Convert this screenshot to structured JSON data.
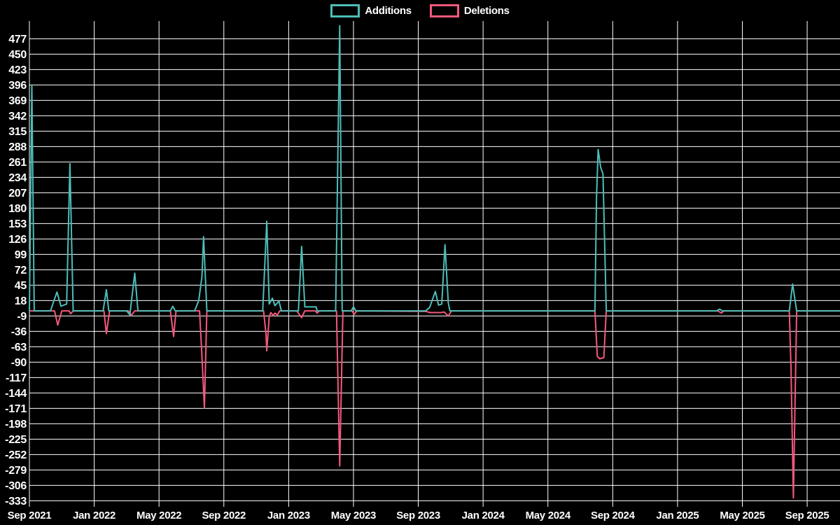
{
  "legend": {
    "items": [
      {
        "label": "Additions",
        "color": "#4dbdb7"
      },
      {
        "label": "Deletions",
        "color": "#f4597b"
      }
    ]
  },
  "chart_data": {
    "type": "line",
    "title": "",
    "background": "#000000",
    "grid": "on",
    "grid_color": "#ffffff",
    "text_color": "#ffffff",
    "legend_position": "top-center",
    "x_axis": {
      "unit": "months since Sep 2021",
      "labels": [
        "Sep 2021",
        "Jan 2022",
        "May 2022",
        "Sep 2022",
        "Jan 2023",
        "May 2023",
        "Sep 2023",
        "Jan 2024",
        "May 2024",
        "Sep 2024",
        "Jan 2025",
        "May 2025",
        "Sep 2025"
      ],
      "tick_positions_months": [
        0,
        4,
        8,
        12,
        16,
        20,
        24,
        28,
        32,
        36,
        40,
        44,
        48
      ],
      "range_months": [
        0,
        50
      ]
    },
    "y_axis": {
      "ticks": [
        477,
        450,
        423,
        396,
        369,
        342,
        315,
        288,
        261,
        234,
        207,
        180,
        153,
        126,
        99,
        72,
        45,
        18,
        -9,
        -36,
        -63,
        -90,
        -117,
        -144,
        -171,
        -198,
        -225,
        -252,
        -279,
        -306,
        -333
      ],
      "step": 27,
      "min": -333,
      "max": 477
    },
    "series": [
      {
        "name": "Additions",
        "color": "#4dbdb7",
        "points": [
          [
            0,
            0
          ],
          [
            0.15,
            396
          ],
          [
            0.3,
            0
          ],
          [
            1.3,
            0
          ],
          [
            1.7,
            33
          ],
          [
            1.95,
            8
          ],
          [
            2.3,
            12
          ],
          [
            2.5,
            258
          ],
          [
            2.7,
            0
          ],
          [
            4.55,
            0
          ],
          [
            4.75,
            37
          ],
          [
            4.9,
            0
          ],
          [
            6.0,
            0
          ],
          [
            6.2,
            -7
          ],
          [
            6.5,
            66
          ],
          [
            6.7,
            0
          ],
          [
            8.7,
            0
          ],
          [
            8.85,
            8
          ],
          [
            9.0,
            0
          ],
          [
            10.2,
            0
          ],
          [
            10.45,
            18
          ],
          [
            10.65,
            60
          ],
          [
            10.75,
            130
          ],
          [
            10.95,
            0
          ],
          [
            14.4,
            0
          ],
          [
            14.65,
            157
          ],
          [
            14.8,
            12
          ],
          [
            15.0,
            22
          ],
          [
            15.15,
            9
          ],
          [
            15.4,
            17
          ],
          [
            15.55,
            0
          ],
          [
            16.6,
            0
          ],
          [
            16.8,
            113
          ],
          [
            17.0,
            7
          ],
          [
            17.7,
            7
          ],
          [
            17.75,
            0
          ],
          [
            18.9,
            0
          ],
          [
            19.15,
            500
          ],
          [
            19.3,
            0
          ],
          [
            19.85,
            0
          ],
          [
            20.0,
            7
          ],
          [
            20.15,
            0
          ],
          [
            24.45,
            0
          ],
          [
            24.7,
            6
          ],
          [
            25.05,
            34
          ],
          [
            25.25,
            10
          ],
          [
            25.45,
            12
          ],
          [
            25.65,
            116
          ],
          [
            25.85,
            14
          ],
          [
            25.95,
            0
          ],
          [
            34.9,
            0
          ],
          [
            35.0,
            200
          ],
          [
            35.1,
            283
          ],
          [
            35.25,
            252
          ],
          [
            35.4,
            240
          ],
          [
            35.6,
            0
          ],
          [
            42.4,
            0
          ],
          [
            42.6,
            3
          ],
          [
            42.75,
            0
          ],
          [
            46.9,
            0
          ],
          [
            47.1,
            47
          ],
          [
            47.35,
            0
          ],
          [
            50.0,
            0
          ]
        ]
      },
      {
        "name": "Deletions",
        "color": "#f4597b",
        "points": [
          [
            0,
            0
          ],
          [
            1.55,
            0
          ],
          [
            1.75,
            -25
          ],
          [
            2.0,
            0
          ],
          [
            2.45,
            0
          ],
          [
            2.55,
            -5
          ],
          [
            2.7,
            0
          ],
          [
            4.6,
            0
          ],
          [
            4.75,
            -40
          ],
          [
            4.95,
            0
          ],
          [
            6.1,
            0
          ],
          [
            6.3,
            -8
          ],
          [
            6.5,
            0
          ],
          [
            8.7,
            0
          ],
          [
            8.9,
            -45
          ],
          [
            9.05,
            0
          ],
          [
            10.5,
            0
          ],
          [
            10.65,
            -80
          ],
          [
            10.8,
            -170
          ],
          [
            10.95,
            0
          ],
          [
            14.45,
            0
          ],
          [
            14.6,
            -40
          ],
          [
            14.65,
            -70
          ],
          [
            14.8,
            -10
          ],
          [
            14.9,
            -3
          ],
          [
            15.05,
            -8
          ],
          [
            15.15,
            -4
          ],
          [
            15.3,
            -7
          ],
          [
            15.45,
            0
          ],
          [
            16.5,
            0
          ],
          [
            16.8,
            -12
          ],
          [
            17.0,
            0
          ],
          [
            17.65,
            0
          ],
          [
            17.75,
            -4
          ],
          [
            17.9,
            0
          ],
          [
            18.95,
            0
          ],
          [
            19.15,
            -272
          ],
          [
            19.35,
            0
          ],
          [
            19.9,
            0
          ],
          [
            20.05,
            -6
          ],
          [
            20.2,
            0
          ],
          [
            24.5,
            -1
          ],
          [
            24.7,
            -3
          ],
          [
            25.4,
            -3
          ],
          [
            25.6,
            -2
          ],
          [
            25.85,
            -9
          ],
          [
            26.05,
            0
          ],
          [
            34.9,
            0
          ],
          [
            35.05,
            -80
          ],
          [
            35.2,
            -84
          ],
          [
            35.45,
            -82
          ],
          [
            35.6,
            0
          ],
          [
            42.5,
            0
          ],
          [
            42.7,
            -4
          ],
          [
            42.85,
            0
          ],
          [
            46.9,
            0
          ],
          [
            47.0,
            -100
          ],
          [
            47.15,
            -328
          ],
          [
            47.35,
            0
          ],
          [
            50.0,
            0
          ]
        ]
      }
    ]
  }
}
